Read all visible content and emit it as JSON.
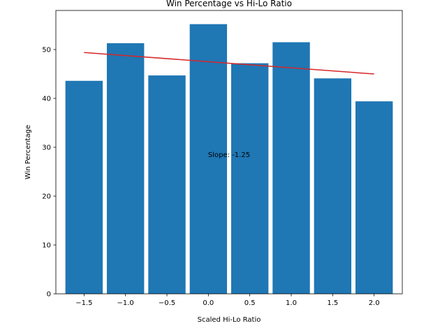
{
  "chart_data": {
    "type": "bar",
    "title": "Win Percentage vs Hi-Lo Ratio",
    "xlabel": "Scaled Hi-Lo Ratio",
    "ylabel": "Win Percentage",
    "x": [
      -1.5,
      -1.0,
      -0.5,
      0.0,
      0.5,
      1.0,
      1.5,
      2.0
    ],
    "values": [
      43.6,
      51.3,
      44.7,
      55.2,
      47.2,
      51.5,
      44.1,
      39.4
    ],
    "bar_width": 0.45,
    "bar_color": "#1f77b4",
    "xlim": [
      -1.84,
      2.34
    ],
    "ylim": [
      0,
      58
    ],
    "xticks": [
      -1.5,
      -1.0,
      -0.5,
      0.0,
      0.5,
      1.0,
      1.5,
      2.0
    ],
    "xtick_labels": [
      "−1.5",
      "−1.0",
      "−0.5",
      "0.0",
      "0.5",
      "1.0",
      "1.5",
      "2.0"
    ],
    "yticks": [
      0,
      10,
      20,
      30,
      40,
      50
    ],
    "ytick_labels": [
      "0",
      "10",
      "20",
      "30",
      "40",
      "50"
    ],
    "trendline": {
      "color": "#d62728",
      "x": [
        -1.5,
        2.0
      ],
      "y": [
        49.4,
        45.0
      ]
    },
    "annotation": {
      "text": "Slope: -1.25",
      "x": 0.25,
      "y": 28.5
    },
    "grid": false,
    "legend": "none"
  }
}
